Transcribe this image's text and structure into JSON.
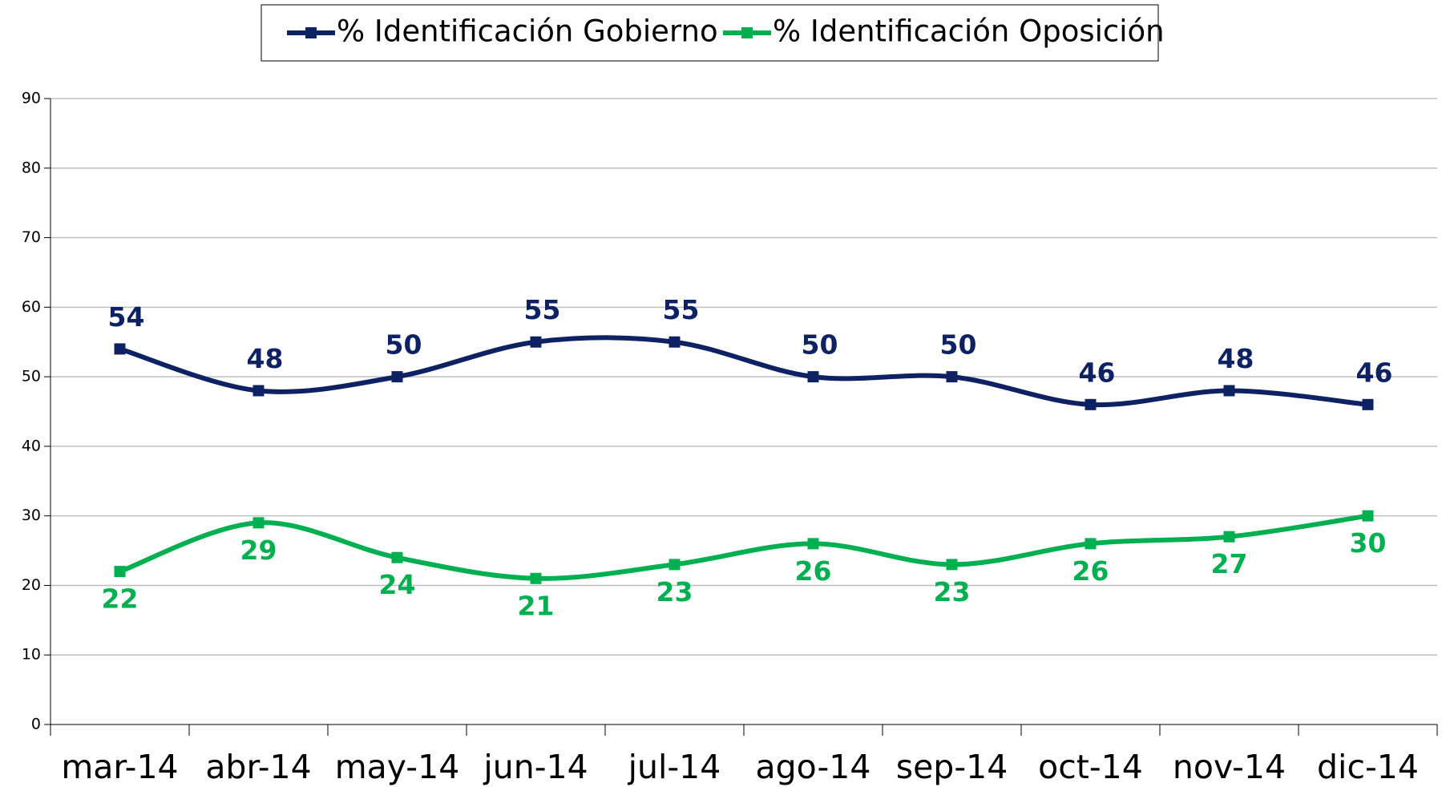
{
  "chart_data": {
    "type": "line",
    "categories": [
      "mar-14",
      "abr-14",
      "may-14",
      "jun-14",
      "jul-14",
      "ago-14",
      "sep-14",
      "oct-14",
      "nov-14",
      "dic-14"
    ],
    "series": [
      {
        "name": "% Identificación Gobierno",
        "color": "#0d2163",
        "values": [
          54,
          48,
          50,
          55,
          55,
          50,
          50,
          46,
          48,
          46
        ]
      },
      {
        "name": "% Identificación Oposición",
        "color": "#00b050",
        "values": [
          22,
          29,
          24,
          21,
          23,
          26,
          23,
          26,
          27,
          30
        ]
      }
    ],
    "ylim": [
      0,
      90
    ],
    "yticks": [
      0,
      10,
      20,
      30,
      40,
      50,
      60,
      70,
      80,
      90
    ],
    "grid": true,
    "legend": "top",
    "smooth": true
  }
}
